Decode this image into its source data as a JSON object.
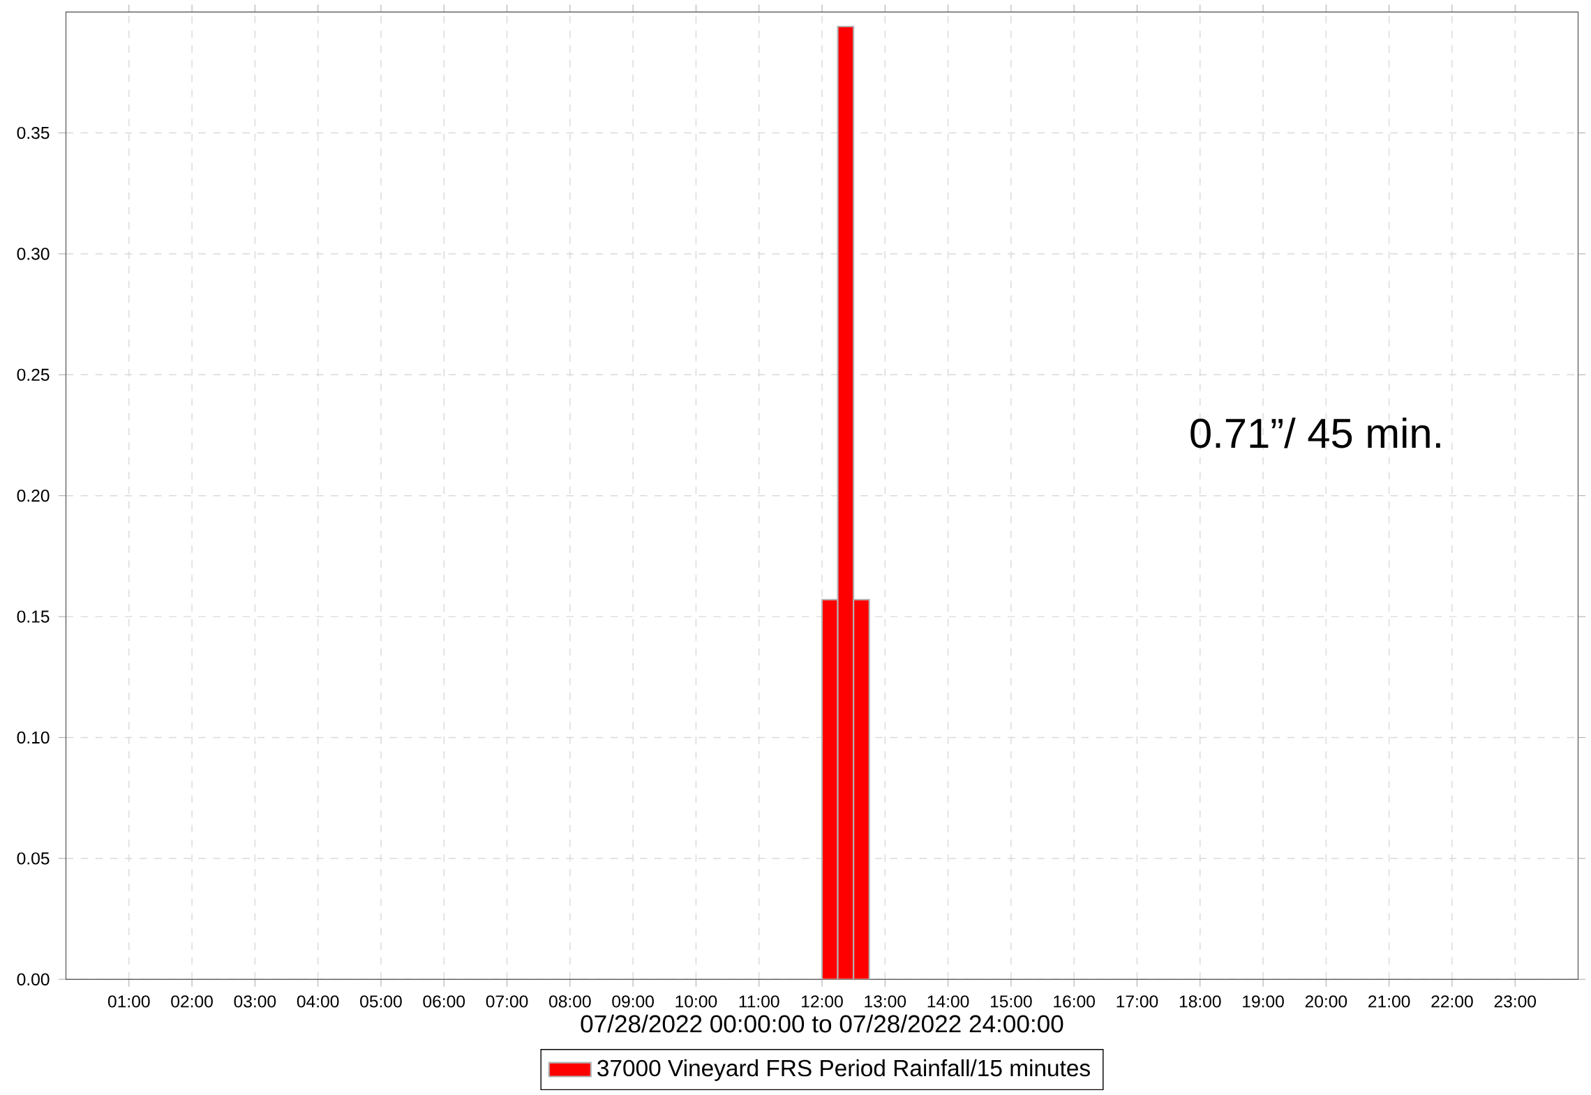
{
  "chart_data": {
    "type": "histogram",
    "xlabel": "07/28/2022 00:00:00 to 07/28/2022 24:00:00",
    "bins": [
      12,
      12.25,
      12.5,
      12.75
    ],
    "series": [
      {
        "name": "37000 Vineyard FRS Period Rainfall/15 minutes",
        "color": "#ff0000",
        "values": [
          0.157,
          0.394,
          0.157
        ]
      }
    ],
    "xlim": [
      0,
      24
    ],
    "xticks": [
      {
        "value": 1,
        "label": "01:00"
      },
      {
        "value": 2,
        "label": "02:00"
      },
      {
        "value": 3,
        "label": "03:00"
      },
      {
        "value": 4,
        "label": "04:00"
      },
      {
        "value": 5,
        "label": "05:00"
      },
      {
        "value": 6,
        "label": "06:00"
      },
      {
        "value": 7,
        "label": "07:00"
      },
      {
        "value": 8,
        "label": "08:00"
      },
      {
        "value": 9,
        "label": "09:00"
      },
      {
        "value": 10,
        "label": "10:00"
      },
      {
        "value": 11,
        "label": "11:00"
      },
      {
        "value": 12,
        "label": "12:00"
      },
      {
        "value": 13,
        "label": "13:00"
      },
      {
        "value": 14,
        "label": "14:00"
      },
      {
        "value": 15,
        "label": "15:00"
      },
      {
        "value": 16,
        "label": "16:00"
      },
      {
        "value": 17,
        "label": "17:00"
      },
      {
        "value": 18,
        "label": "18:00"
      },
      {
        "value": 19,
        "label": "19:00"
      },
      {
        "value": 20,
        "label": "20:00"
      },
      {
        "value": 21,
        "label": "21:00"
      },
      {
        "value": 22,
        "label": "22:00"
      },
      {
        "value": 23,
        "label": "23:00"
      }
    ],
    "ylim": [
      0,
      0.4
    ],
    "yticks": [
      {
        "value": 0,
        "label": "0.00"
      },
      {
        "value": 0.05,
        "label": "0.05"
      },
      {
        "value": 0.1,
        "label": "0.10"
      },
      {
        "value": 0.15,
        "label": "0.15"
      },
      {
        "value": 0.2,
        "label": "0.20"
      },
      {
        "value": 0.25,
        "label": "0.25"
      },
      {
        "value": 0.3,
        "label": "0.30"
      },
      {
        "value": 0.35,
        "label": "0.35"
      }
    ],
    "grid": true,
    "legend": "bottom",
    "annotations": [
      "0.71”/ 45 min."
    ]
  }
}
